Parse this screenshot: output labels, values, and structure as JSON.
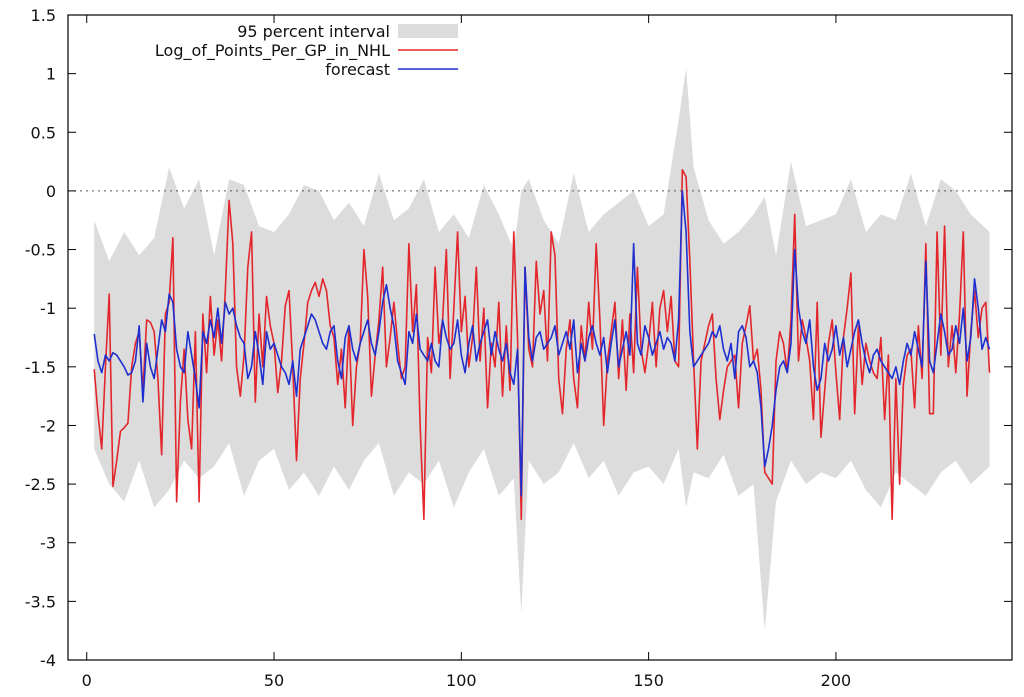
{
  "chart_data": {
    "type": "line",
    "title": "",
    "xlabel": "",
    "ylabel": "",
    "xlim": [
      -5,
      247
    ],
    "ylim": [
      -4,
      1.5
    ],
    "x_ticks": [
      0,
      50,
      100,
      150,
      200
    ],
    "x_tick_labels": [
      "0",
      "50",
      "100",
      "150",
      "200"
    ],
    "y_ticks": [
      1.5,
      1,
      0.5,
      0,
      -0.5,
      -1,
      -1.5,
      -2,
      -2.5,
      -3,
      -3.5,
      -4
    ],
    "y_tick_labels": [
      "1.5",
      "1",
      "0.5",
      "0",
      "-0.5",
      "-1",
      "-1.5",
      "-2",
      "-2.5",
      "-3",
      "-3.5",
      "-4"
    ],
    "reference_line": {
      "y": 0,
      "style": "dotted"
    },
    "legend_position": "top-left",
    "legend": [
      {
        "label": "95 percent interval",
        "color": "#dcdcdc",
        "kind": "band"
      },
      {
        "label": "Log_of_Points_Per_GP_in_NHL",
        "color": "#e3262b",
        "kind": "line"
      },
      {
        "label": "forecast",
        "color": "#1e2fd0",
        "kind": "line"
      }
    ],
    "series": [
      {
        "name": "Log_of_Points_Per_GP_in_NHL",
        "color": "#e3262b",
        "x": [
          2,
          3,
          4,
          5,
          6,
          7,
          8,
          9,
          10,
          11,
          12,
          13,
          14,
          15,
          16,
          17,
          18,
          19,
          20,
          21,
          22,
          23,
          24,
          25,
          26,
          27,
          28,
          29,
          30,
          31,
          32,
          33,
          34,
          35,
          36,
          37,
          38,
          39,
          40,
          41,
          42,
          43,
          44,
          45,
          46,
          47,
          48,
          49,
          50,
          51,
          52,
          53,
          54,
          55,
          56,
          57,
          58,
          59,
          60,
          61,
          62,
          63,
          64,
          65,
          66,
          67,
          68,
          69,
          70,
          71,
          72,
          73,
          74,
          75,
          76,
          77,
          78,
          79,
          80,
          81,
          82,
          83,
          84,
          85,
          86,
          87,
          88,
          89,
          90,
          91,
          92,
          93,
          94,
          95,
          96,
          97,
          98,
          99,
          100,
          101,
          102,
          103,
          104,
          105,
          106,
          107,
          108,
          109,
          110,
          111,
          112,
          113,
          114,
          115,
          116,
          117,
          118,
          119,
          120,
          121,
          122,
          123,
          124,
          125,
          126,
          127,
          128,
          129,
          130,
          131,
          132,
          133,
          134,
          135,
          136,
          137,
          138,
          139,
          140,
          141,
          142,
          143,
          144,
          145,
          146,
          147,
          148,
          149,
          150,
          151,
          152,
          153,
          154,
          155,
          156,
          157,
          158,
          159,
          160,
          161,
          162,
          163,
          164,
          165,
          166,
          167,
          168,
          169,
          170,
          171,
          172,
          173,
          174,
          175,
          176,
          177,
          178,
          179,
          180,
          181,
          182,
          183,
          184,
          185,
          186,
          187,
          188,
          189,
          190,
          191,
          192,
          193,
          194,
          195,
          196,
          197,
          198,
          199,
          200,
          201,
          202,
          203,
          204,
          205,
          206,
          207,
          208,
          209,
          210,
          211,
          212,
          213,
          214,
          215,
          216,
          217,
          218,
          219,
          220,
          221,
          222,
          223,
          224,
          225,
          226,
          227,
          228,
          229,
          230,
          231,
          232,
          233,
          234,
          235,
          236,
          237,
          238,
          239,
          240,
          241
        ],
        "values": [
          -1.52,
          -1.9,
          -2.2,
          -1.5,
          -0.88,
          -2.52,
          -2.3,
          -2.05,
          -2.02,
          -1.98,
          -1.5,
          -1.3,
          -1.2,
          -1.7,
          -1.1,
          -1.12,
          -1.2,
          -1.6,
          -2.25,
          -1.05,
          -0.95,
          -0.4,
          -2.65,
          -1.8,
          -1.35,
          -1.95,
          -2.2,
          -1.2,
          -2.65,
          -1.05,
          -1.55,
          -0.9,
          -1.4,
          -1.1,
          -1.45,
          -0.85,
          -0.08,
          -0.45,
          -1.5,
          -1.75,
          -1.4,
          -0.65,
          -0.35,
          -1.8,
          -1.05,
          -1.5,
          -0.9,
          -1.15,
          -1.3,
          -1.72,
          -1.45,
          -0.98,
          -0.85,
          -1.5,
          -2.3,
          -1.6,
          -1.3,
          -0.95,
          -0.85,
          -0.78,
          -0.9,
          -0.75,
          -0.85,
          -1.15,
          -1.25,
          -1.65,
          -1.35,
          -1.85,
          -1.15,
          -2.0,
          -1.5,
          -1.3,
          -0.5,
          -0.9,
          -1.75,
          -1.4,
          -1.1,
          -0.65,
          -1.5,
          -1.25,
          -0.95,
          -1.3,
          -1.6,
          -1.5,
          -0.45,
          -1.2,
          -0.8,
          -2.0,
          -2.8,
          -1.25,
          -1.55,
          -0.65,
          -1.3,
          -1.1,
          -0.5,
          -1.6,
          -1.0,
          -0.35,
          -1.2,
          -0.9,
          -1.5,
          -1.25,
          -0.65,
          -1.45,
          -1.0,
          -1.85,
          -1.3,
          -1.5,
          -0.95,
          -1.75,
          -1.15,
          -1.7,
          -0.35,
          -1.25,
          -2.8,
          -0.65,
          -1.35,
          -1.5,
          -0.6,
          -1.05,
          -0.85,
          -1.45,
          -0.35,
          -0.55,
          -1.6,
          -1.9,
          -1.35,
          -1.1,
          -1.6,
          -1.85,
          -1.15,
          -1.45,
          -0.95,
          -1.35,
          -0.45,
          -1.1,
          -2.0,
          -1.45,
          -1.2,
          -0.95,
          -1.6,
          -1.1,
          -1.7,
          -1.05,
          -1.55,
          -0.65,
          -1.35,
          -1.55,
          -1.3,
          -0.95,
          -1.5,
          -1.0,
          -0.85,
          -1.2,
          -0.9,
          -1.45,
          -1.5,
          0.18,
          0.12,
          -0.6,
          -1.45,
          -2.2,
          -1.45,
          -1.3,
          -1.15,
          -1.05,
          -1.6,
          -1.95,
          -1.7,
          -1.5,
          -1.45,
          -1.4,
          -1.85,
          -1.3,
          -1.15,
          -0.98,
          -1.45,
          -1.35,
          -1.7,
          -2.4,
          -2.45,
          -2.5,
          -1.45,
          -1.2,
          -1.3,
          -1.55,
          -1.1,
          -0.2,
          -1.45,
          -1.1,
          -1.25,
          -1.45,
          -1.95,
          -0.95,
          -2.1,
          -1.7,
          -1.3,
          -1.1,
          -1.55,
          -1.95,
          -1.25,
          -1.0,
          -0.7,
          -1.9,
          -1.15,
          -1.65,
          -1.3,
          -1.45,
          -1.55,
          -1.6,
          -1.25,
          -1.95,
          -1.4,
          -2.8,
          -1.6,
          -2.5,
          -1.65,
          -1.4,
          -1.35,
          -1.85,
          -1.15,
          -1.6,
          -0.45,
          -1.9,
          -1.9,
          -0.35,
          -1.4,
          -0.3,
          -1.5,
          -1.15,
          -1.55,
          -1.05,
          -0.35,
          -1.75,
          -1.2,
          -0.85,
          -1.25,
          -1.0,
          -0.95,
          -1.55
        ]
      },
      {
        "name": "forecast",
        "color": "#1e2fd0",
        "x": [
          2,
          3,
          4,
          5,
          6,
          7,
          8,
          9,
          10,
          11,
          12,
          13,
          14,
          15,
          16,
          17,
          18,
          19,
          20,
          21,
          22,
          23,
          24,
          25,
          26,
          27,
          28,
          29,
          30,
          31,
          32,
          33,
          34,
          35,
          36,
          37,
          38,
          39,
          40,
          41,
          42,
          43,
          44,
          45,
          46,
          47,
          48,
          49,
          50,
          51,
          52,
          53,
          54,
          55,
          56,
          57,
          58,
          59,
          60,
          61,
          62,
          63,
          64,
          65,
          66,
          67,
          68,
          69,
          70,
          71,
          72,
          73,
          74,
          75,
          76,
          77,
          78,
          79,
          80,
          81,
          82,
          83,
          84,
          85,
          86,
          87,
          88,
          89,
          90,
          91,
          92,
          93,
          94,
          95,
          96,
          97,
          98,
          99,
          100,
          101,
          102,
          103,
          104,
          105,
          106,
          107,
          108,
          109,
          110,
          111,
          112,
          113,
          114,
          115,
          116,
          117,
          118,
          119,
          120,
          121,
          122,
          123,
          124,
          125,
          126,
          127,
          128,
          129,
          130,
          131,
          132,
          133,
          134,
          135,
          136,
          137,
          138,
          139,
          140,
          141,
          142,
          143,
          144,
          145,
          146,
          147,
          148,
          149,
          150,
          151,
          152,
          153,
          154,
          155,
          156,
          157,
          158,
          159,
          160,
          161,
          162,
          163,
          164,
          165,
          166,
          167,
          168,
          169,
          170,
          171,
          172,
          173,
          174,
          175,
          176,
          177,
          178,
          179,
          180,
          181,
          182,
          183,
          184,
          185,
          186,
          187,
          188,
          189,
          190,
          191,
          192,
          193,
          194,
          195,
          196,
          197,
          198,
          199,
          200,
          201,
          202,
          203,
          204,
          205,
          206,
          207,
          208,
          209,
          210,
          211,
          212,
          213,
          214,
          215,
          216,
          217,
          218,
          219,
          220,
          221,
          222,
          223,
          224,
          225,
          226,
          227,
          228,
          229,
          230,
          231,
          232,
          233,
          234,
          235,
          236,
          237,
          238,
          239,
          240,
          241
        ],
        "values": [
          -1.22,
          -1.45,
          -1.55,
          -1.4,
          -1.45,
          -1.38,
          -1.4,
          -1.45,
          -1.5,
          -1.57,
          -1.55,
          -1.45,
          -1.15,
          -1.8,
          -1.3,
          -1.5,
          -1.6,
          -1.35,
          -1.1,
          -1.2,
          -0.88,
          -0.95,
          -1.35,
          -1.5,
          -1.55,
          -1.2,
          -1.4,
          -1.6,
          -1.85,
          -1.2,
          -1.3,
          -1.1,
          -1.25,
          -1.0,
          -1.3,
          -0.95,
          -1.05,
          -1.0,
          -1.15,
          -1.25,
          -1.3,
          -1.6,
          -1.5,
          -1.2,
          -1.4,
          -1.65,
          -1.2,
          -1.35,
          -1.3,
          -1.4,
          -1.5,
          -1.55,
          -1.65,
          -1.45,
          -1.75,
          -1.35,
          -1.25,
          -1.15,
          -1.05,
          -1.1,
          -1.2,
          -1.3,
          -1.35,
          -1.2,
          -1.15,
          -1.45,
          -1.6,
          -1.25,
          -1.15,
          -1.35,
          -1.45,
          -1.3,
          -1.2,
          -1.1,
          -1.3,
          -1.4,
          -1.2,
          -0.95,
          -0.8,
          -1.0,
          -1.15,
          -1.45,
          -1.55,
          -1.65,
          -1.2,
          -1.3,
          -1.05,
          -1.35,
          -1.4,
          -1.45,
          -1.3,
          -1.45,
          -1.5,
          -1.1,
          -1.25,
          -1.35,
          -1.3,
          -1.1,
          -1.4,
          -1.55,
          -1.3,
          -1.15,
          -1.45,
          -1.3,
          -1.2,
          -1.1,
          -1.4,
          -1.2,
          -1.35,
          -1.45,
          -1.3,
          -1.55,
          -1.65,
          -1.35,
          -2.6,
          -0.65,
          -1.25,
          -1.45,
          -1.25,
          -1.2,
          -1.35,
          -1.3,
          -1.25,
          -1.15,
          -1.4,
          -1.3,
          -1.2,
          -1.35,
          -1.1,
          -1.55,
          -1.3,
          -1.45,
          -1.25,
          -1.15,
          -1.3,
          -1.4,
          -1.25,
          -1.55,
          -1.3,
          -1.1,
          -1.5,
          -1.35,
          -1.2,
          -1.4,
          -0.45,
          -1.3,
          -1.4,
          -1.15,
          -1.25,
          -1.4,
          -1.3,
          -1.2,
          -1.35,
          -1.25,
          -1.3,
          -1.45,
          -1.1,
          0.0,
          -0.35,
          -1.2,
          -1.5,
          -1.45,
          -1.4,
          -1.35,
          -1.3,
          -1.2,
          -1.25,
          -1.15,
          -1.35,
          -1.45,
          -1.3,
          -1.6,
          -1.2,
          -1.15,
          -1.25,
          -1.5,
          -1.45,
          -1.55,
          -1.85,
          -2.35,
          -2.2,
          -2.0,
          -1.7,
          -1.5,
          -1.45,
          -1.55,
          -1.3,
          -0.5,
          -1.0,
          -1.2,
          -1.3,
          -1.1,
          -1.5,
          -1.7,
          -1.6,
          -1.3,
          -1.45,
          -1.35,
          -1.15,
          -1.4,
          -1.25,
          -1.5,
          -1.35,
          -1.2,
          -1.1,
          -1.3,
          -1.45,
          -1.55,
          -1.4,
          -1.35,
          -1.45,
          -1.5,
          -1.55,
          -1.6,
          -1.5,
          -1.65,
          -1.45,
          -1.3,
          -1.4,
          -1.2,
          -1.35,
          -1.5,
          -0.6,
          -1.45,
          -1.55,
          -1.3,
          -1.05,
          -1.2,
          -1.4,
          -1.35,
          -1.15,
          -1.3,
          -1.0,
          -1.45,
          -1.25,
          -0.75,
          -1.0,
          -1.35,
          -1.25,
          -1.35
        ]
      }
    ],
    "interval": {
      "name": "95 percent interval",
      "color": "#dcdcdc",
      "x": [
        2,
        6,
        10,
        14,
        18,
        22,
        26,
        30,
        34,
        38,
        42,
        46,
        50,
        54,
        58,
        62,
        66,
        70,
        74,
        78,
        82,
        86,
        90,
        94,
        98,
        102,
        106,
        110,
        114,
        116,
        118,
        122,
        126,
        130,
        134,
        138,
        142,
        146,
        150,
        154,
        158,
        160,
        162,
        166,
        170,
        174,
        178,
        181,
        184,
        188,
        192,
        196,
        200,
        204,
        208,
        212,
        216,
        220,
        224,
        228,
        232,
        236,
        241
      ],
      "upper": [
        -0.25,
        -0.6,
        -0.35,
        -0.55,
        -0.4,
        0.2,
        -0.15,
        0.1,
        -0.55,
        0.1,
        0.05,
        -0.3,
        -0.35,
        -0.2,
        0.05,
        0.0,
        -0.25,
        -0.1,
        -0.3,
        0.15,
        -0.25,
        -0.15,
        0.1,
        -0.35,
        -0.2,
        -0.4,
        0.05,
        -0.2,
        -0.5,
        0.0,
        0.1,
        -0.25,
        -0.45,
        0.15,
        -0.35,
        -0.2,
        -0.1,
        0.0,
        -0.3,
        -0.2,
        0.6,
        1.05,
        0.2,
        -0.25,
        -0.45,
        -0.35,
        -0.2,
        -0.05,
        -0.55,
        0.25,
        -0.3,
        -0.25,
        -0.2,
        0.1,
        -0.35,
        -0.2,
        -0.25,
        0.15,
        -0.3,
        0.1,
        0.0,
        -0.2,
        -0.35
      ],
      "lower": [
        -2.2,
        -2.5,
        -2.65,
        -2.3,
        -2.7,
        -2.55,
        -2.3,
        -2.45,
        -2.35,
        -2.15,
        -2.6,
        -2.3,
        -2.2,
        -2.55,
        -2.4,
        -2.6,
        -2.35,
        -2.55,
        -2.3,
        -2.15,
        -2.6,
        -2.4,
        -2.5,
        -2.3,
        -2.7,
        -2.4,
        -2.2,
        -2.6,
        -2.45,
        -3.6,
        -2.3,
        -2.5,
        -2.4,
        -2.15,
        -2.45,
        -2.3,
        -2.6,
        -2.4,
        -2.35,
        -2.5,
        -2.2,
        -2.7,
        -2.4,
        -2.45,
        -2.25,
        -2.6,
        -2.5,
        -3.75,
        -2.65,
        -2.3,
        -2.5,
        -2.4,
        -2.45,
        -2.3,
        -2.55,
        -2.7,
        -2.4,
        -2.5,
        -2.6,
        -2.4,
        -2.3,
        -2.5,
        -2.35
      ]
    }
  }
}
